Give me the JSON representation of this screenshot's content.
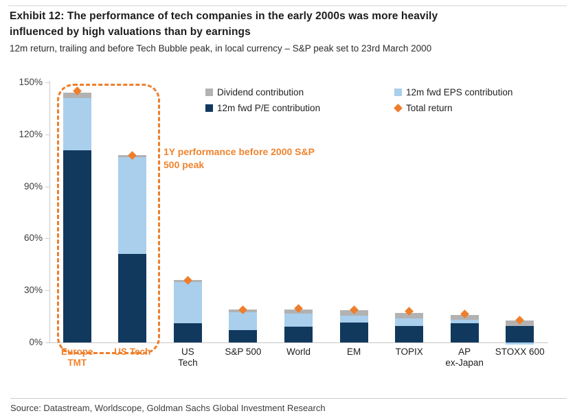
{
  "header": {
    "title": "Exhibit 12: The performance of tech companies in the early 2000s was more heavily influenced by high valuations than by earnings",
    "subtitle": "12m return, trailing and before Tech Bubble peak, in local currency – S&P peak set to 23rd March 2000"
  },
  "legend": {
    "items": [
      {
        "label": "Dividend contribution",
        "swatch": "square",
        "color_key": "gray"
      },
      {
        "label": "12m fwd EPS contribution",
        "swatch": "square",
        "color_key": "light_blue"
      },
      {
        "label": "12m fwd P/E contribution",
        "swatch": "square",
        "color_key": "navy"
      },
      {
        "label": "Total return",
        "swatch": "diamond",
        "color_key": "orange"
      }
    ]
  },
  "annotation": {
    "text": "1Y performance before 2000 S&P 500 peak"
  },
  "footer": {
    "source": "Source: Datastream, Worldscope, Goldman Sachs Global Investment Research"
  },
  "colors": {
    "navy": "#11395e",
    "light_blue": "#a9cfec",
    "gray": "#b2b2b2",
    "orange": "#ee7e2b",
    "axis": "#cbcbcb"
  },
  "chart_data": {
    "type": "bar",
    "stacked": true,
    "title": "12m return, trailing and before Tech Bubble peak, in local currency",
    "xlabel": "",
    "ylabel": "",
    "ylim": [
      0,
      150
    ],
    "ytick_values": [
      0,
      30,
      60,
      90,
      120,
      150
    ],
    "ytick_suffix": "%",
    "grid": false,
    "legend_position": "top",
    "categories": [
      {
        "label": "Europe\nTMT",
        "highlight": true
      },
      {
        "label": "US Tech",
        "highlight": true
      },
      {
        "label": "US\nTech",
        "highlight": false
      },
      {
        "label": "S&P 500",
        "highlight": false
      },
      {
        "label": "World",
        "highlight": false
      },
      {
        "label": "EM",
        "highlight": false
      },
      {
        "label": "TOPIX",
        "highlight": false
      },
      {
        "label": "AP\nex-Japan",
        "highlight": false
      },
      {
        "label": "STOXX 600",
        "highlight": false
      }
    ],
    "series": [
      {
        "name": "12m fwd P/E contribution",
        "color_key": "navy",
        "values": [
          111,
          51,
          11,
          7,
          9,
          11.5,
          9.5,
          11,
          9.5
        ]
      },
      {
        "name": "12m fwd EPS contribution",
        "color_key": "light_blue",
        "values": [
          30,
          56,
          24,
          10.5,
          7.5,
          4,
          4.5,
          2,
          -1
        ]
      },
      {
        "name": "Dividend contribution",
        "color_key": "gray",
        "values": [
          3,
          1,
          1,
          1.5,
          2.5,
          3,
          3,
          3,
          3
        ]
      }
    ],
    "total_return_markers": {
      "name": "Total return",
      "color_key": "orange",
      "values": [
        145,
        108,
        36,
        19,
        19.5,
        19,
        18,
        16.5,
        13
      ]
    }
  }
}
